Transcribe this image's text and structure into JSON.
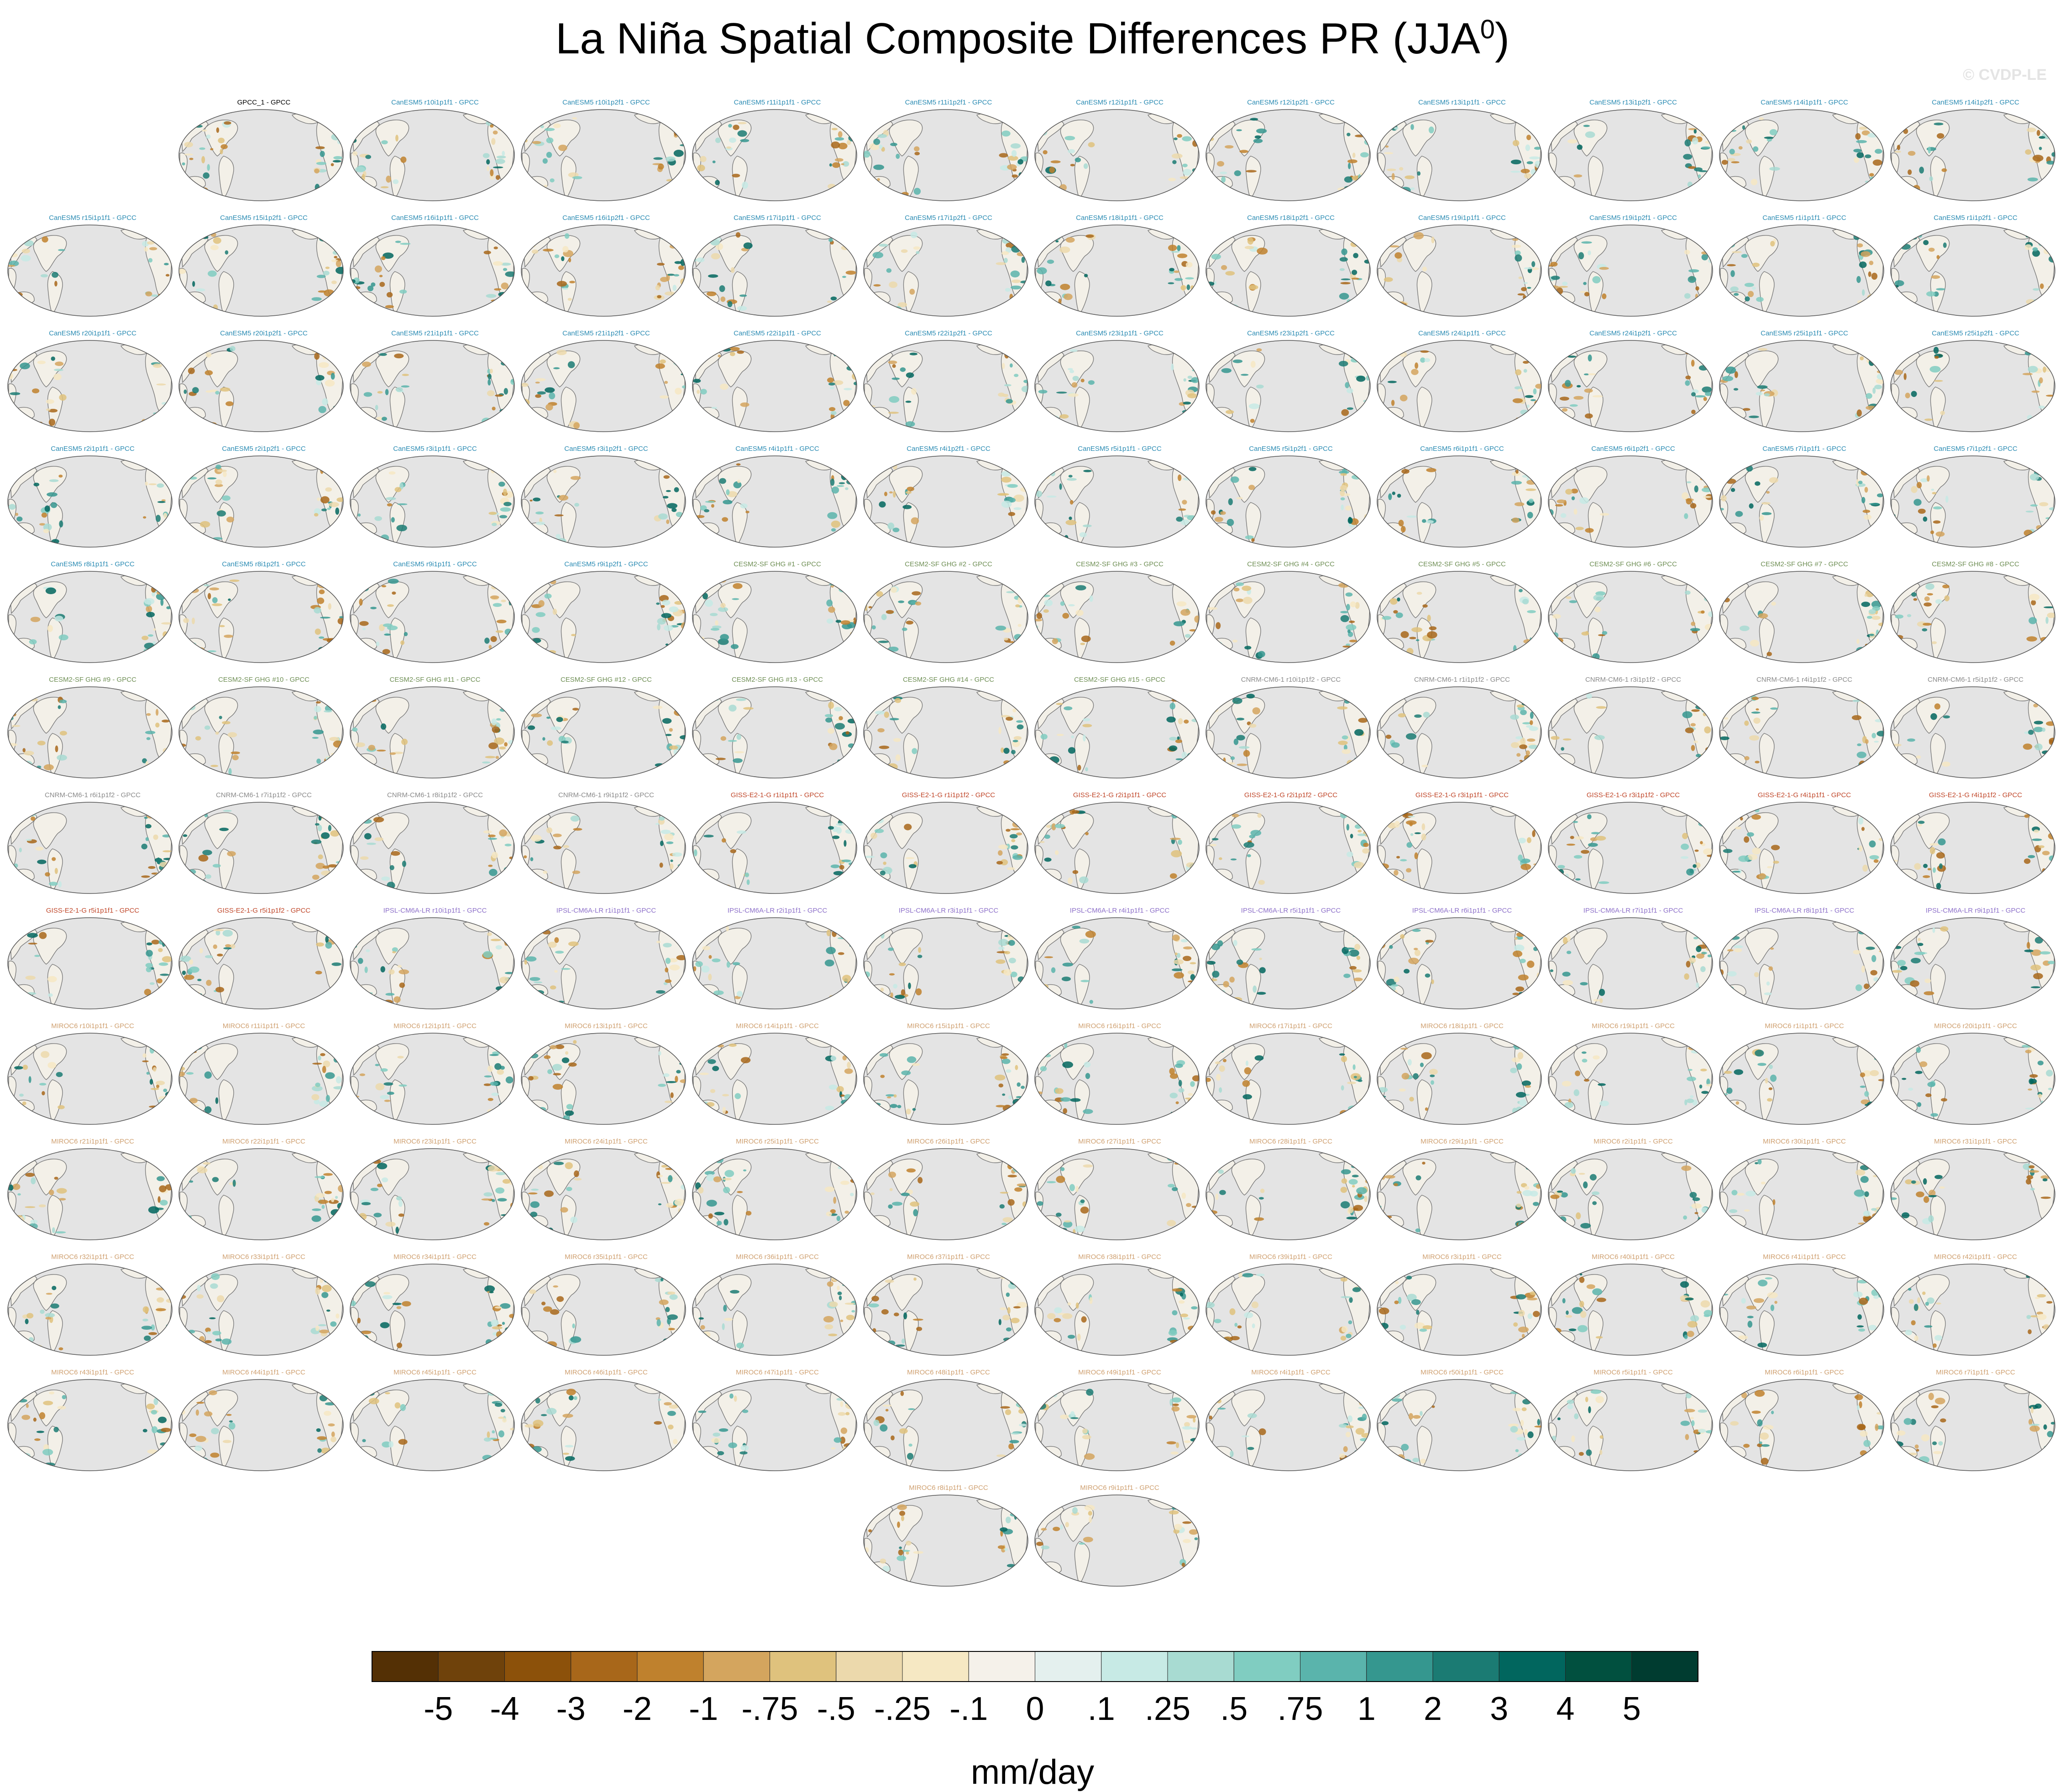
{
  "title": {
    "text": "La Niña Spatial Composite Differences PR (JJA",
    "sup": "0",
    "close": ")"
  },
  "watermark": "© CVDP-LE",
  "units": "mm/day",
  "colors": {
    "land": "#f3f0e8",
    "ocean": "#e4e4e4",
    "coast": "#7a7a7a",
    "label_obs": "#000000",
    "label_canesm": "#2a8bb3",
    "label_cesm": "#6f8f55",
    "label_cnrm": "#8a8a8a",
    "label_giss": "#c0472a",
    "label_ipsl": "#8d70c9",
    "label_miroc": "#cfa070"
  },
  "panel_rows": [
    {
      "offset": 1,
      "panels": [
        {
          "label": "GPCC_1 - GPCC",
          "model": "obs"
        },
        {
          "label": "CanESM5 r10i1p1f1 - GPCC",
          "model": "canesm"
        },
        {
          "label": "CanESM5 r10i1p2f1 - GPCC",
          "model": "canesm"
        },
        {
          "label": "CanESM5 r11i1p1f1 - GPCC",
          "model": "canesm"
        },
        {
          "label": "CanESM5 r11i1p2f1 - GPCC",
          "model": "canesm"
        },
        {
          "label": "CanESM5 r12i1p1f1 - GPCC",
          "model": "canesm"
        },
        {
          "label": "CanESM5 r12i1p2f1 - GPCC",
          "model": "canesm"
        },
        {
          "label": "CanESM5 r13i1p1f1 - GPCC",
          "model": "canesm"
        },
        {
          "label": "CanESM5 r13i1p2f1 - GPCC",
          "model": "canesm"
        },
        {
          "label": "CanESM5 r14i1p1f1 - GPCC",
          "model": "canesm"
        },
        {
          "label": "CanESM5 r14i1p2f1 - GPCC",
          "model": "canesm"
        }
      ]
    },
    {
      "offset": 0,
      "panels": [
        {
          "label": "CanESM5 r15i1p1f1 - GPCC",
          "model": "canesm"
        },
        {
          "label": "CanESM5 r15i1p2f1 - GPCC",
          "model": "canesm"
        },
        {
          "label": "CanESM5 r16i1p1f1 - GPCC",
          "model": "canesm"
        },
        {
          "label": "CanESM5 r16i1p2f1 - GPCC",
          "model": "canesm"
        },
        {
          "label": "CanESM5 r17i1p1f1 - GPCC",
          "model": "canesm"
        },
        {
          "label": "CanESM5 r17i1p2f1 - GPCC",
          "model": "canesm"
        },
        {
          "label": "CanESM5 r18i1p1f1 - GPCC",
          "model": "canesm"
        },
        {
          "label": "CanESM5 r18i1p2f1 - GPCC",
          "model": "canesm"
        },
        {
          "label": "CanESM5 r19i1p1f1 - GPCC",
          "model": "canesm"
        },
        {
          "label": "CanESM5 r19i1p2f1 - GPCC",
          "model": "canesm"
        },
        {
          "label": "CanESM5 r1i1p1f1 - GPCC",
          "model": "canesm"
        },
        {
          "label": "CanESM5 r1i1p2f1 - GPCC",
          "model": "canesm"
        }
      ]
    },
    {
      "offset": 0,
      "panels": [
        {
          "label": "CanESM5 r20i1p1f1 - GPCC",
          "model": "canesm"
        },
        {
          "label": "CanESM5 r20i1p2f1 - GPCC",
          "model": "canesm"
        },
        {
          "label": "CanESM5 r21i1p1f1 - GPCC",
          "model": "canesm"
        },
        {
          "label": "CanESM5 r21i1p2f1 - GPCC",
          "model": "canesm"
        },
        {
          "label": "CanESM5 r22i1p1f1 - GPCC",
          "model": "canesm"
        },
        {
          "label": "CanESM5 r22i1p2f1 - GPCC",
          "model": "canesm"
        },
        {
          "label": "CanESM5 r23i1p1f1 - GPCC",
          "model": "canesm"
        },
        {
          "label": "CanESM5 r23i1p2f1 - GPCC",
          "model": "canesm"
        },
        {
          "label": "CanESM5 r24i1p1f1 - GPCC",
          "model": "canesm"
        },
        {
          "label": "CanESM5 r24i1p2f1 - GPCC",
          "model": "canesm"
        },
        {
          "label": "CanESM5 r25i1p1f1 - GPCC",
          "model": "canesm"
        },
        {
          "label": "CanESM5 r25i1p2f1 - GPCC",
          "model": "canesm"
        }
      ]
    },
    {
      "offset": 0,
      "panels": [
        {
          "label": "CanESM5 r2i1p1f1 - GPCC",
          "model": "canesm"
        },
        {
          "label": "CanESM5 r2i1p2f1 - GPCC",
          "model": "canesm"
        },
        {
          "label": "CanESM5 r3i1p1f1 - GPCC",
          "model": "canesm"
        },
        {
          "label": "CanESM5 r3i1p2f1 - GPCC",
          "model": "canesm"
        },
        {
          "label": "CanESM5 r4i1p1f1 - GPCC",
          "model": "canesm"
        },
        {
          "label": "CanESM5 r4i1p2f1 - GPCC",
          "model": "canesm"
        },
        {
          "label": "CanESM5 r5i1p1f1 - GPCC",
          "model": "canesm"
        },
        {
          "label": "CanESM5 r5i1p2f1 - GPCC",
          "model": "canesm"
        },
        {
          "label": "CanESM5 r6i1p1f1 - GPCC",
          "model": "canesm"
        },
        {
          "label": "CanESM5 r6i1p2f1 - GPCC",
          "model": "canesm"
        },
        {
          "label": "CanESM5 r7i1p1f1 - GPCC",
          "model": "canesm"
        },
        {
          "label": "CanESM5 r7i1p2f1 - GPCC",
          "model": "canesm"
        }
      ]
    },
    {
      "offset": 0,
      "panels": [
        {
          "label": "CanESM5 r8i1p1f1 - GPCC",
          "model": "canesm"
        },
        {
          "label": "CanESM5 r8i1p2f1 - GPCC",
          "model": "canesm"
        },
        {
          "label": "CanESM5 r9i1p1f1 - GPCC",
          "model": "canesm"
        },
        {
          "label": "CanESM5 r9i1p2f1 - GPCC",
          "model": "canesm"
        },
        {
          "label": "CESM2-SF GHG #1 - GPCC",
          "model": "cesm"
        },
        {
          "label": "CESM2-SF GHG #2 - GPCC",
          "model": "cesm"
        },
        {
          "label": "CESM2-SF GHG #3 - GPCC",
          "model": "cesm"
        },
        {
          "label": "CESM2-SF GHG #4 - GPCC",
          "model": "cesm"
        },
        {
          "label": "CESM2-SF GHG #5 - GPCC",
          "model": "cesm"
        },
        {
          "label": "CESM2-SF GHG #6 - GPCC",
          "model": "cesm"
        },
        {
          "label": "CESM2-SF GHG #7 - GPCC",
          "model": "cesm"
        },
        {
          "label": "CESM2-SF GHG #8 - GPCC",
          "model": "cesm"
        }
      ]
    },
    {
      "offset": 0,
      "panels": [
        {
          "label": "CESM2-SF GHG #9 - GPCC",
          "model": "cesm"
        },
        {
          "label": "CESM2-SF GHG #10 - GPCC",
          "model": "cesm"
        },
        {
          "label": "CESM2-SF GHG #11 - GPCC",
          "model": "cesm"
        },
        {
          "label": "CESM2-SF GHG #12 - GPCC",
          "model": "cesm"
        },
        {
          "label": "CESM2-SF GHG #13 - GPCC",
          "model": "cesm"
        },
        {
          "label": "CESM2-SF GHG #14 - GPCC",
          "model": "cesm"
        },
        {
          "label": "CESM2-SF GHG #15 - GPCC",
          "model": "cesm"
        },
        {
          "label": "CNRM-CM6-1 r10i1p1f2 - GPCC",
          "model": "cnrm"
        },
        {
          "label": "CNRM-CM6-1 r1i1p1f2 - GPCC",
          "model": "cnrm"
        },
        {
          "label": "CNRM-CM6-1 r3i1p1f2 - GPCC",
          "model": "cnrm"
        },
        {
          "label": "CNRM-CM6-1 r4i1p1f2 - GPCC",
          "model": "cnrm"
        },
        {
          "label": "CNRM-CM6-1 r5i1p1f2 - GPCC",
          "model": "cnrm"
        }
      ]
    },
    {
      "offset": 0,
      "panels": [
        {
          "label": "CNRM-CM6-1 r6i1p1f2 - GPCC",
          "model": "cnrm"
        },
        {
          "label": "CNRM-CM6-1 r7i1p1f2 - GPCC",
          "model": "cnrm"
        },
        {
          "label": "CNRM-CM6-1 r8i1p1f2 - GPCC",
          "model": "cnrm"
        },
        {
          "label": "CNRM-CM6-1 r9i1p1f2 - GPCC",
          "model": "cnrm"
        },
        {
          "label": "GISS-E2-1-G r1i1p1f1 - GPCC",
          "model": "giss"
        },
        {
          "label": "GISS-E2-1-G r1i1p1f2 - GPCC",
          "model": "giss"
        },
        {
          "label": "GISS-E2-1-G r2i1p1f1 - GPCC",
          "model": "giss"
        },
        {
          "label": "GISS-E2-1-G r2i1p1f2 - GPCC",
          "model": "giss"
        },
        {
          "label": "GISS-E2-1-G r3i1p1f1 - GPCC",
          "model": "giss"
        },
        {
          "label": "GISS-E2-1-G r3i1p1f2 - GPCC",
          "model": "giss"
        },
        {
          "label": "GISS-E2-1-G r4i1p1f1 - GPCC",
          "model": "giss"
        },
        {
          "label": "GISS-E2-1-G r4i1p1f2 - GPCC",
          "model": "giss"
        }
      ]
    },
    {
      "offset": 0,
      "panels": [
        {
          "label": "GISS-E2-1-G r5i1p1f1 - GPCC",
          "model": "giss"
        },
        {
          "label": "GISS-E2-1-G r5i1p1f2 - GPCC",
          "model": "giss"
        },
        {
          "label": "IPSL-CM6A-LR r10i1p1f1 - GPCC",
          "model": "ipsl"
        },
        {
          "label": "IPSL-CM6A-LR r1i1p1f1 - GPCC",
          "model": "ipsl"
        },
        {
          "label": "IPSL-CM6A-LR r2i1p1f1 - GPCC",
          "model": "ipsl"
        },
        {
          "label": "IPSL-CM6A-LR r3i1p1f1 - GPCC",
          "model": "ipsl"
        },
        {
          "label": "IPSL-CM6A-LR r4i1p1f1 - GPCC",
          "model": "ipsl"
        },
        {
          "label": "IPSL-CM6A-LR r5i1p1f1 - GPCC",
          "model": "ipsl"
        },
        {
          "label": "IPSL-CM6A-LR r6i1p1f1 - GPCC",
          "model": "ipsl"
        },
        {
          "label": "IPSL-CM6A-LR r7i1p1f1 - GPCC",
          "model": "ipsl"
        },
        {
          "label": "IPSL-CM6A-LR r8i1p1f1 - GPCC",
          "model": "ipsl"
        },
        {
          "label": "IPSL-CM6A-LR r9i1p1f1 - GPCC",
          "model": "ipsl"
        }
      ]
    },
    {
      "offset": 0,
      "panels": [
        {
          "label": "MIROC6 r10i1p1f1 - GPCC",
          "model": "miroc"
        },
        {
          "label": "MIROC6 r11i1p1f1 - GPCC",
          "model": "miroc"
        },
        {
          "label": "MIROC6 r12i1p1f1 - GPCC",
          "model": "miroc"
        },
        {
          "label": "MIROC6 r13i1p1f1 - GPCC",
          "model": "miroc"
        },
        {
          "label": "MIROC6 r14i1p1f1 - GPCC",
          "model": "miroc"
        },
        {
          "label": "MIROC6 r15i1p1f1 - GPCC",
          "model": "miroc"
        },
        {
          "label": "MIROC6 r16i1p1f1 - GPCC",
          "model": "miroc"
        },
        {
          "label": "MIROC6 r17i1p1f1 - GPCC",
          "model": "miroc"
        },
        {
          "label": "MIROC6 r18i1p1f1 - GPCC",
          "model": "miroc"
        },
        {
          "label": "MIROC6 r19i1p1f1 - GPCC",
          "model": "miroc"
        },
        {
          "label": "MIROC6 r1i1p1f1 - GPCC",
          "model": "miroc"
        },
        {
          "label": "MIROC6 r20i1p1f1 - GPCC",
          "model": "miroc"
        }
      ]
    },
    {
      "offset": 0,
      "panels": [
        {
          "label": "MIROC6 r21i1p1f1 - GPCC",
          "model": "miroc"
        },
        {
          "label": "MIROC6 r22i1p1f1 - GPCC",
          "model": "miroc"
        },
        {
          "label": "MIROC6 r23i1p1f1 - GPCC",
          "model": "miroc"
        },
        {
          "label": "MIROC6 r24i1p1f1 - GPCC",
          "model": "miroc"
        },
        {
          "label": "MIROC6 r25i1p1f1 - GPCC",
          "model": "miroc"
        },
        {
          "label": "MIROC6 r26i1p1f1 - GPCC",
          "model": "miroc"
        },
        {
          "label": "MIROC6 r27i1p1f1 - GPCC",
          "model": "miroc"
        },
        {
          "label": "MIROC6 r28i1p1f1 - GPCC",
          "model": "miroc"
        },
        {
          "label": "MIROC6 r29i1p1f1 - GPCC",
          "model": "miroc"
        },
        {
          "label": "MIROC6 r2i1p1f1 - GPCC",
          "model": "miroc"
        },
        {
          "label": "MIROC6 r30i1p1f1 - GPCC",
          "model": "miroc"
        },
        {
          "label": "MIROC6 r31i1p1f1 - GPCC",
          "model": "miroc"
        }
      ]
    },
    {
      "offset": 0,
      "panels": [
        {
          "label": "MIROC6 r32i1p1f1 - GPCC",
          "model": "miroc"
        },
        {
          "label": "MIROC6 r33i1p1f1 - GPCC",
          "model": "miroc"
        },
        {
          "label": "MIROC6 r34i1p1f1 - GPCC",
          "model": "miroc"
        },
        {
          "label": "MIROC6 r35i1p1f1 - GPCC",
          "model": "miroc"
        },
        {
          "label": "MIROC6 r36i1p1f1 - GPCC",
          "model": "miroc"
        },
        {
          "label": "MIROC6 r37i1p1f1 - GPCC",
          "model": "miroc"
        },
        {
          "label": "MIROC6 r38i1p1f1 - GPCC",
          "model": "miroc"
        },
        {
          "label": "MIROC6 r39i1p1f1 - GPCC",
          "model": "miroc"
        },
        {
          "label": "MIROC6 r3i1p1f1 - GPCC",
          "model": "miroc"
        },
        {
          "label": "MIROC6 r40i1p1f1 - GPCC",
          "model": "miroc"
        },
        {
          "label": "MIROC6 r41i1p1f1 - GPCC",
          "model": "miroc"
        },
        {
          "label": "MIROC6 r42i1p1f1 - GPCC",
          "model": "miroc"
        }
      ]
    },
    {
      "offset": 0,
      "panels": [
        {
          "label": "MIROC6 r43i1p1f1 - GPCC",
          "model": "miroc"
        },
        {
          "label": "MIROC6 r44i1p1f1 - GPCC",
          "model": "miroc"
        },
        {
          "label": "MIROC6 r45i1p1f1 - GPCC",
          "model": "miroc"
        },
        {
          "label": "MIROC6 r46i1p1f1 - GPCC",
          "model": "miroc"
        },
        {
          "label": "MIROC6 r47i1p1f1 - GPCC",
          "model": "miroc"
        },
        {
          "label": "MIROC6 r48i1p1f1 - GPCC",
          "model": "miroc"
        },
        {
          "label": "MIROC6 r49i1p1f1 - GPCC",
          "model": "miroc"
        },
        {
          "label": "MIROC6 r4i1p1f1 - GPCC",
          "model": "miroc"
        },
        {
          "label": "MIROC6 r50i1p1f1 - GPCC",
          "model": "miroc"
        },
        {
          "label": "MIROC6 r5i1p1f1 - GPCC",
          "model": "miroc"
        },
        {
          "label": "MIROC6 r6i1p1f1 - GPCC",
          "model": "miroc"
        },
        {
          "label": "MIROC6 r7i1p1f1 - GPCC",
          "model": "miroc"
        }
      ]
    },
    {
      "offset": 5,
      "panels": [
        {
          "label": "MIROC6 r8i1p1f1 - GPCC",
          "model": "miroc"
        },
        {
          "label": "MIROC6 r9i1p1f1 - GPCC",
          "model": "miroc"
        }
      ]
    }
  ],
  "chart_data": {
    "type": "heatmap",
    "title": "La Niña Spatial Composite Differences PR (JJA0)",
    "colorbar": {
      "units": "mm/day",
      "levels": [
        "-5",
        "-4",
        "-3",
        "-2",
        "-1",
        "-.75",
        "-.5",
        "-.25",
        "-.1",
        "0",
        ".1",
        ".25",
        ".5",
        ".75",
        "1",
        "2",
        "3",
        "4",
        "5"
      ],
      "colors": [
        "#543005",
        "#6f420b",
        "#8c510a",
        "#a8671a",
        "#bf812d",
        "#d4a55e",
        "#dfc27d",
        "#ecd9ac",
        "#f6e8c3",
        "#f5f1ea",
        "#e4f0ee",
        "#c7eae5",
        "#a8dbd2",
        "#80cdc1",
        "#5ab4ac",
        "#35978f",
        "#1b7b73",
        "#01665e",
        "#01503f",
        "#003c30"
      ]
    }
  }
}
